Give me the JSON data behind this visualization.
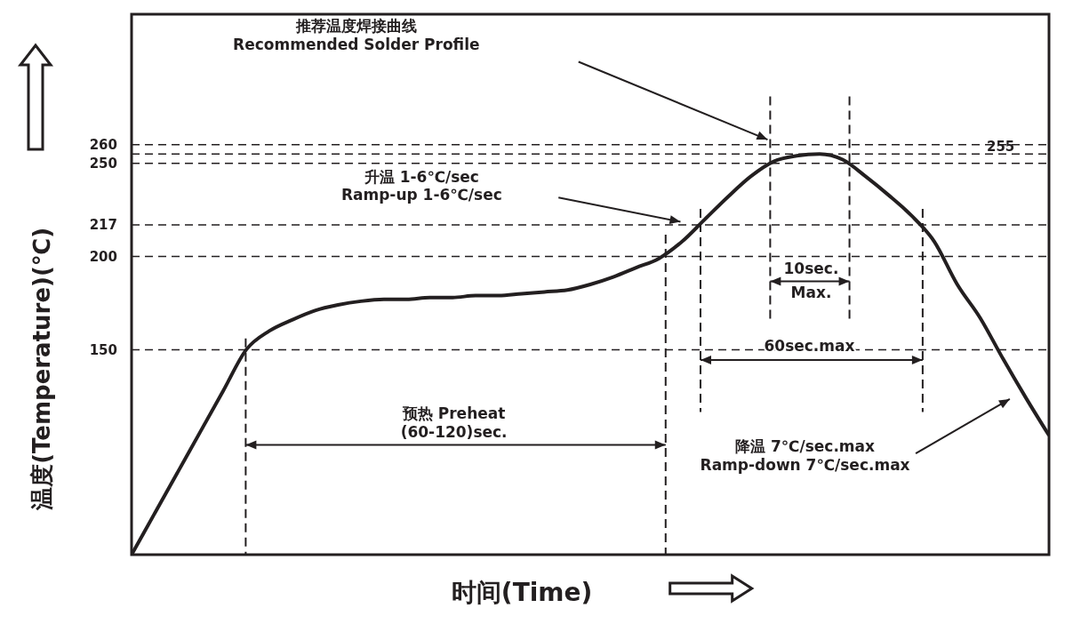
{
  "chart_data": {
    "type": "line",
    "xlabel": "时间(Time)",
    "ylabel": "温度(Temperature)(℃)",
    "categories": [
      null,
      null,
      null,
      null,
      null,
      null,
      null,
      null,
      null,
      null,
      null,
      null,
      null,
      null,
      null,
      null,
      null,
      null,
      null,
      null,
      null,
      null,
      null,
      null,
      null,
      null,
      null,
      null,
      null,
      null,
      null,
      null,
      null,
      null,
      null,
      null,
      null,
      null,
      null,
      null,
      null
    ],
    "series": [
      {
        "color": "#231f20",
        "values": [
          40,
          62,
          84,
          106,
          128,
          150,
          160,
          166,
          171,
          174,
          176,
          177,
          177,
          178,
          178,
          179,
          179,
          180,
          181,
          182,
          185,
          189,
          194,
          199,
          208,
          220,
          232,
          243,
          251,
          254,
          255,
          252,
          243,
          233,
          222,
          208,
          185,
          167,
          145,
          124,
          104
        ]
      }
    ],
    "ylim": [
      40,
      330
    ],
    "yticks": [
      150,
      200,
      217,
      250,
      260
    ],
    "tick_labels": "y",
    "marker": "none",
    "line_style": "solid",
    "ref_lines": [
      {
        "axis": "y",
        "value": 260,
        "label": null,
        "line_style": "dashed"
      },
      {
        "axis": "y",
        "value": 255,
        "label": "255",
        "line_style": "dashed"
      },
      {
        "axis": "y",
        "value": 250,
        "label": null,
        "line_style": "dashed"
      },
      {
        "axis": "y",
        "value": 217,
        "label": null,
        "line_style": "dashed"
      },
      {
        "axis": "y",
        "value": 200,
        "label": null,
        "line_style": "dashed"
      },
      {
        "axis": "y",
        "value": 150,
        "label": null,
        "line_style": "dashed"
      }
    ],
    "annotations": [
      "推荐温度焊接曲线\nRecommended Solder Profile",
      "升温 1-6℃/sec\nRamp-up 1-6℃/sec",
      "10sec.\nMax.",
      "60sec.max",
      "预热 Preheat\n(60-120)sec.",
      "降温 7℃/sec.max\nRamp-down 7℃/sec.max"
    ]
  }
}
